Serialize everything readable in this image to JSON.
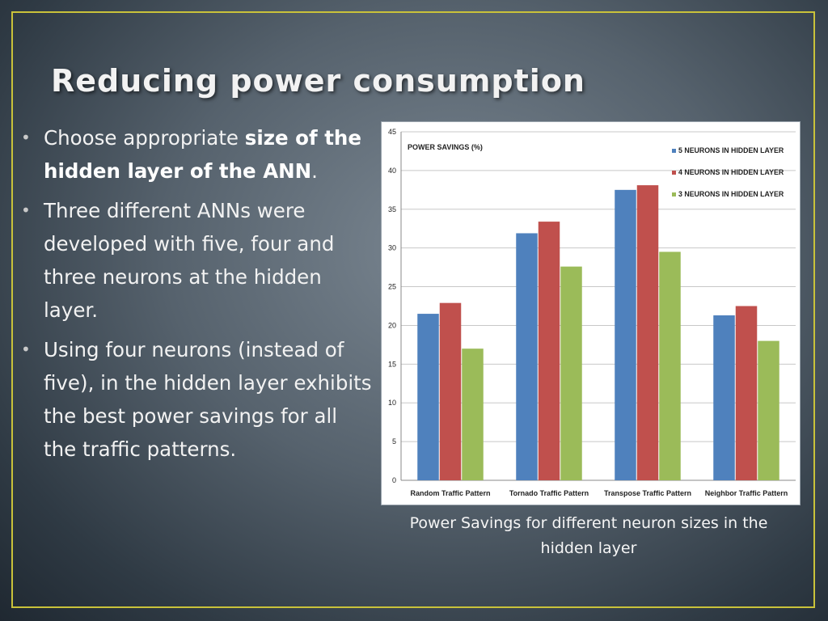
{
  "slide": {
    "title": "Reducing power consumption",
    "caption": "Power Savings for different neuron sizes in the hidden layer",
    "frame_color": "#c9c23a"
  },
  "bullets": {
    "b1_pre": "Choose appropriate ",
    "b1_bold": "size of the hidden layer of the ANN",
    "b1_post": ".",
    "b2": "Three different ANNs were developed with five, four and three neurons at the hidden layer.",
    "b3": "Using four neurons (instead of five), in the hidden layer exhibits the best power savings for all the traffic patterns."
  },
  "chart_data": {
    "type": "bar",
    "title": "POWER SAVINGS (%)",
    "categories": [
      "Random Traffic Pattern",
      "Tornado Traffic Pattern",
      "Transpose Traffic Pattern",
      "Neighbor Traffic Pattern"
    ],
    "series": [
      {
        "name": "5 NEURONS IN HIDDEN LAYER",
        "color": "#4f81bd",
        "values": [
          21.5,
          31.9,
          37.5,
          21.3
        ]
      },
      {
        "name": "4 NEURONS IN HIDDEN LAYER",
        "color": "#c0504d",
        "values": [
          22.9,
          33.4,
          38.1,
          22.5
        ]
      },
      {
        "name": "3 NEURONS IN HIDDEN LAYER",
        "color": "#9bbb59",
        "values": [
          17.0,
          27.6,
          29.5,
          18.0
        ]
      }
    ],
    "ylim": [
      0,
      45
    ],
    "yticks": [
      0,
      5,
      10,
      15,
      20,
      25,
      30,
      35,
      40,
      45
    ],
    "grid": true,
    "legend": "top-right"
  }
}
